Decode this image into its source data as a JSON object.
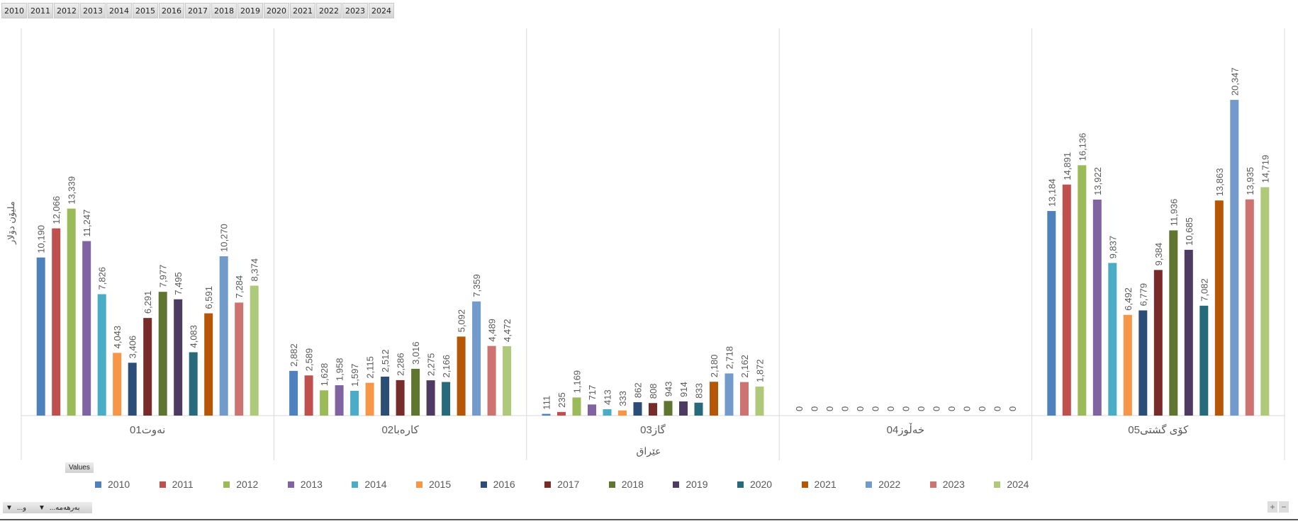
{
  "slicer": {
    "years": [
      "2010",
      "2011",
      "2012",
      "2013",
      "2014",
      "2015",
      "2016",
      "2017",
      "2018",
      "2019",
      "2020",
      "2021",
      "2022",
      "2023",
      "2024"
    ]
  },
  "values_button": "Values",
  "filter_buttons": [
    "...و",
    "...بەرهەمە"
  ],
  "zoom_controls": {
    "plus": "+",
    "minus": "−"
  },
  "chart_data": {
    "type": "bar",
    "ylabel": "ملیۆن دۆلار",
    "xlabel": "عێراق",
    "ylim": [
      0,
      24000
    ],
    "grid": false,
    "legend": "bottom",
    "categories": [
      "01نەوت",
      "02کارەبا",
      "03گاز",
      "04خەڵوز",
      "05کۆی گشتی"
    ],
    "series": [
      {
        "name": "2010",
        "color": "#4F81BD",
        "values": [
          10190,
          2882,
          111,
          0,
          13184
        ]
      },
      {
        "name": "2011",
        "color": "#C0504D",
        "values": [
          12066,
          2589,
          235,
          0,
          14891
        ]
      },
      {
        "name": "2012",
        "color": "#9BBB59",
        "values": [
          13339,
          1628,
          1169,
          0,
          16136
        ]
      },
      {
        "name": "2013",
        "color": "#8064A2",
        "values": [
          11247,
          1958,
          717,
          0,
          13922
        ]
      },
      {
        "name": "2014",
        "color": "#4BACC6",
        "values": [
          7826,
          1597,
          413,
          0,
          9837
        ]
      },
      {
        "name": "2015",
        "color": "#F79646",
        "values": [
          4043,
          2115,
          333,
          0,
          6492
        ]
      },
      {
        "name": "2016",
        "color": "#2C4D75",
        "values": [
          3406,
          2512,
          862,
          0,
          6779
        ]
      },
      {
        "name": "2017",
        "color": "#772C2A",
        "values": [
          6291,
          2286,
          808,
          0,
          9384
        ]
      },
      {
        "name": "2018",
        "color": "#5F7530",
        "values": [
          7977,
          3016,
          943,
          0,
          11936
        ]
      },
      {
        "name": "2019",
        "color": "#4D3B62",
        "values": [
          7495,
          2275,
          914,
          0,
          10685
        ]
      },
      {
        "name": "2020",
        "color": "#276A7C",
        "values": [
          4083,
          2166,
          833,
          0,
          7082
        ]
      },
      {
        "name": "2021",
        "color": "#B65708",
        "values": [
          6591,
          5092,
          2180,
          0,
          13863
        ]
      },
      {
        "name": "2022",
        "color": "#729ACA",
        "values": [
          10270,
          7359,
          2718,
          0,
          20347
        ]
      },
      {
        "name": "2023",
        "color": "#CD7371",
        "values": [
          7284,
          4489,
          2162,
          0,
          13935
        ]
      },
      {
        "name": "2024",
        "color": "#AFC97A",
        "values": [
          8374,
          4472,
          1872,
          0,
          14719
        ]
      }
    ]
  }
}
